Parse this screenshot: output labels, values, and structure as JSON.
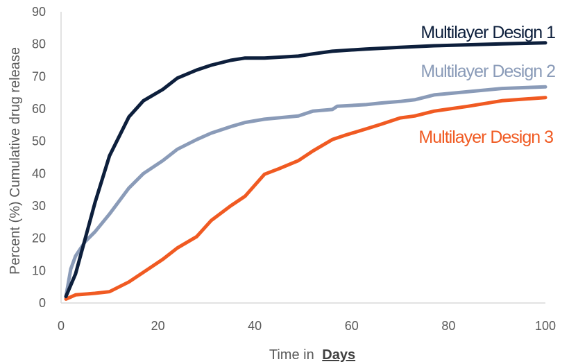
{
  "chart_data": {
    "type": "line",
    "title": "",
    "xlabel_prefix": "Time in",
    "xlabel_emphasis": "Days",
    "ylabel": "Percent (%) Cumulative drug release",
    "xlim": [
      0,
      100
    ],
    "ylim": [
      0,
      90
    ],
    "x_ticks": [
      0,
      20,
      40,
      60,
      80,
      100
    ],
    "y_ticks": [
      0,
      10,
      20,
      30,
      40,
      50,
      60,
      70,
      80,
      90
    ],
    "grid": false,
    "legend": "inline labels at right end of lines",
    "series": [
      {
        "name": "Multilayer Design 1",
        "color": "#0d1f3c",
        "points": [
          [
            1,
            2
          ],
          [
            3,
            9
          ],
          [
            7,
            31
          ],
          [
            10,
            45.5
          ],
          [
            14,
            57.5
          ],
          [
            17,
            62.5
          ],
          [
            21,
            66
          ],
          [
            24,
            69.5
          ],
          [
            28,
            72
          ],
          [
            31,
            73.5
          ],
          [
            35,
            75
          ],
          [
            38,
            75.7
          ],
          [
            42,
            75.7
          ],
          [
            49,
            76.3
          ],
          [
            52,
            77
          ],
          [
            56,
            77.8
          ],
          [
            63,
            78.5
          ],
          [
            70,
            79
          ],
          [
            77,
            79.5
          ],
          [
            84,
            79.8
          ],
          [
            91,
            80.1
          ],
          [
            100,
            80.4
          ]
        ]
      },
      {
        "name": "Multilayer Design 2",
        "color": "#8a9bb8",
        "points": [
          [
            1,
            2
          ],
          [
            2,
            10.5
          ],
          [
            3,
            14.5
          ],
          [
            5,
            19
          ],
          [
            7,
            22
          ],
          [
            10,
            27.5
          ],
          [
            14,
            35.5
          ],
          [
            17,
            40
          ],
          [
            21,
            44
          ],
          [
            24,
            47.5
          ],
          [
            28,
            50.5
          ],
          [
            31,
            52.5
          ],
          [
            35,
            54.5
          ],
          [
            38,
            55.8
          ],
          [
            42,
            56.8
          ],
          [
            49,
            57.8
          ],
          [
            52,
            59.3
          ],
          [
            56,
            59.8
          ],
          [
            57,
            60.8
          ],
          [
            63,
            61.3
          ],
          [
            66,
            61.8
          ],
          [
            70,
            62.3
          ],
          [
            73,
            62.8
          ],
          [
            77,
            64.3
          ],
          [
            84,
            65.3
          ],
          [
            91,
            66.3
          ],
          [
            100,
            66.8
          ]
        ]
      },
      {
        "name": "Multilayer Design 3",
        "color": "#f05a22",
        "points": [
          [
            1,
            1.2
          ],
          [
            3,
            2.5
          ],
          [
            7,
            3
          ],
          [
            10,
            3.5
          ],
          [
            14,
            6.5
          ],
          [
            17,
            9.5
          ],
          [
            21,
            13.5
          ],
          [
            24,
            17
          ],
          [
            28,
            20.5
          ],
          [
            31,
            25.5
          ],
          [
            35,
            30
          ],
          [
            38,
            33
          ],
          [
            42,
            39.8
          ],
          [
            45,
            41.5
          ],
          [
            49,
            44
          ],
          [
            52,
            47
          ],
          [
            56,
            50.5
          ],
          [
            59,
            52
          ],
          [
            63,
            53.8
          ],
          [
            66,
            55.2
          ],
          [
            70,
            57.2
          ],
          [
            73,
            57.8
          ],
          [
            77,
            59.3
          ],
          [
            84,
            60.8
          ],
          [
            91,
            62.5
          ],
          [
            100,
            63.5
          ]
        ]
      }
    ]
  }
}
